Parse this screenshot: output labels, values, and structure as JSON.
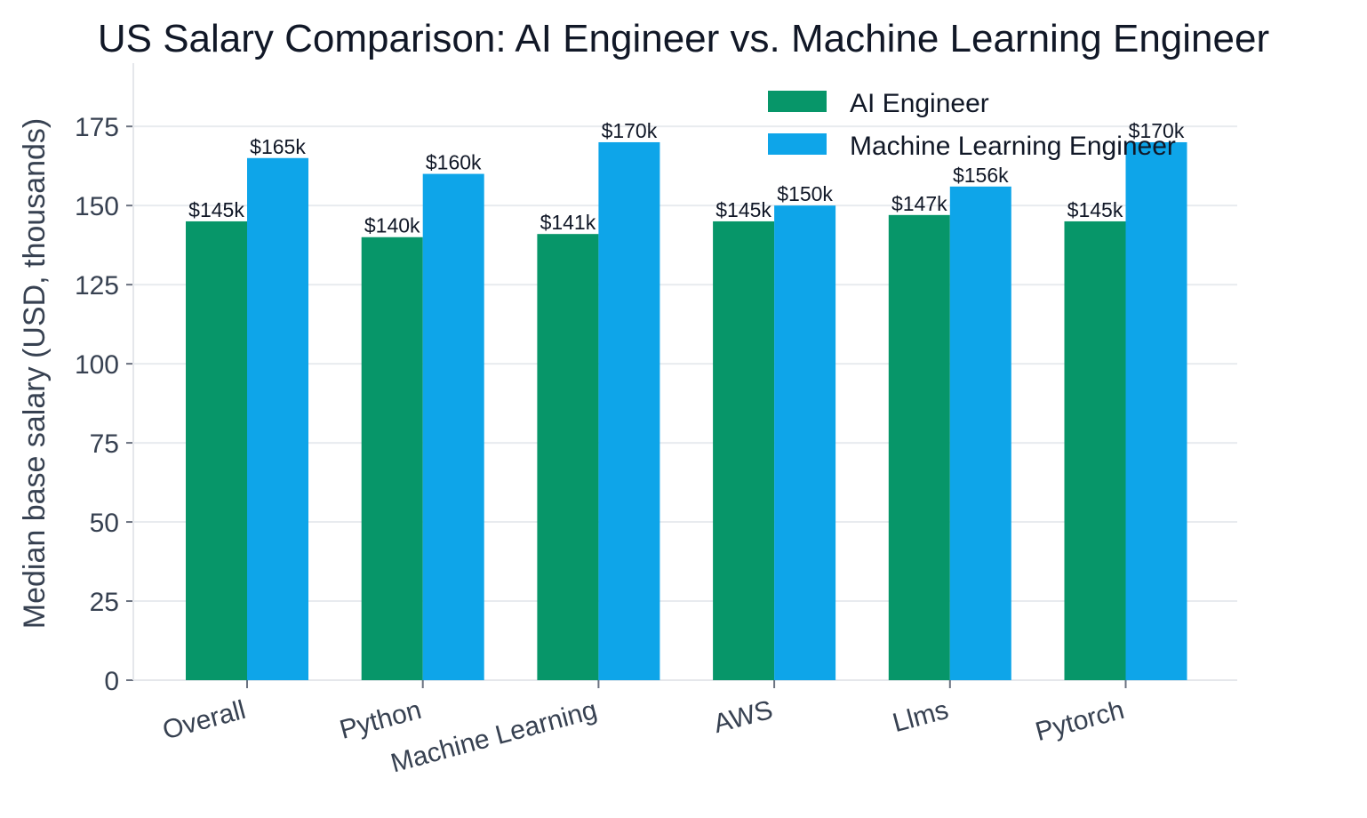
{
  "chart_data": {
    "type": "bar",
    "title": "US Salary Comparison: AI Engineer vs. Machine Learning Engineer",
    "xlabel": "",
    "ylabel": "Median base salary (USD, thousands)",
    "ylim": [
      0,
      195
    ],
    "yticks": [
      0,
      25,
      50,
      75,
      100,
      125,
      150,
      175
    ],
    "categories": [
      "Overall",
      "Python",
      "Machine Learning",
      "AWS",
      "Llms",
      "Pytorch"
    ],
    "series": [
      {
        "name": "AI Engineer",
        "color": "#079669",
        "values": [
          145,
          140,
          141,
          145,
          147,
          145
        ],
        "labels": [
          "$145k",
          "$140k",
          "$141k",
          "$145k",
          "$147k",
          "$145k"
        ]
      },
      {
        "name": "Machine Learning Engineer",
        "color": "#0ea5e9",
        "values": [
          165,
          160,
          170,
          150,
          156,
          170
        ],
        "labels": [
          "$165k",
          "$160k",
          "$170k",
          "$150k",
          "$156k",
          "$170k"
        ]
      }
    ],
    "grid": true,
    "legend_position": "top-right"
  }
}
